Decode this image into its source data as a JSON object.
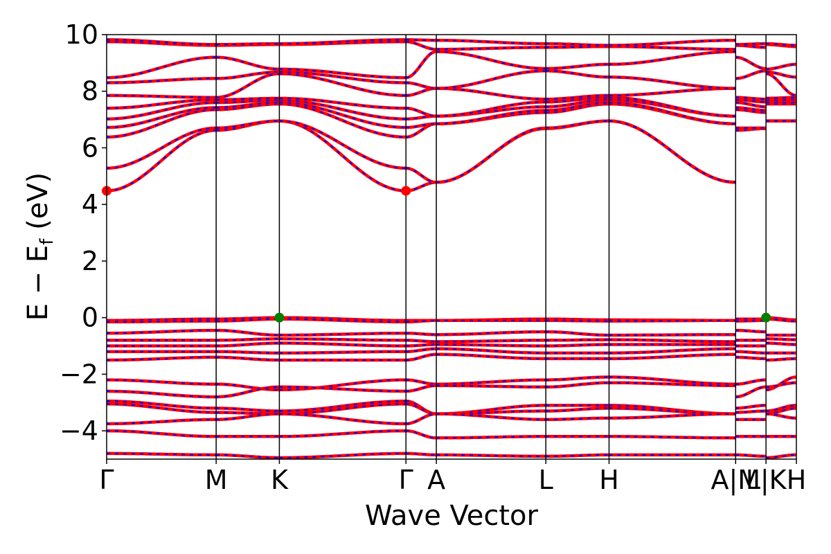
{
  "chart_data": {
    "type": "line",
    "title": "",
    "xlabel": "Wave Vector",
    "ylabel": "E − E",
    "ylabel_sub": "f",
    "ylabel_unit": " (eV)",
    "ylim": [
      -5,
      10
    ],
    "y_ticks": [
      {
        "value": -4,
        "label": "−4"
      },
      {
        "value": -2,
        "label": "−2"
      },
      {
        "value": 0,
        "label": "0"
      },
      {
        "value": 2,
        "label": "2"
      },
      {
        "value": 4,
        "label": "4"
      },
      {
        "value": 6,
        "label": "6"
      },
      {
        "value": 8,
        "label": "8"
      },
      {
        "value": 10,
        "label": "10"
      }
    ],
    "x_ticks": [
      {
        "k": 0.0,
        "label": "Γ"
      },
      {
        "k": 0.577,
        "label": "M"
      },
      {
        "k": 0.91,
        "label": "K"
      },
      {
        "k": 1.577,
        "label": "Γ"
      },
      {
        "k": 1.737,
        "label": "A"
      },
      {
        "k": 2.314,
        "label": "L"
      },
      {
        "k": 2.647,
        "label": "H"
      },
      {
        "k": 3.314,
        "label": "A|M"
      },
      {
        "k": 3.474,
        "label": "L|K"
      },
      {
        "k": 3.634,
        "label": "H"
      }
    ],
    "xlim": [
      0,
      3.634
    ],
    "series_colors": {
      "spin_up": "#ff0000",
      "spin_down": "#0000ff",
      "cbm_marker": "#ff0000",
      "vbm_marker": "#008000"
    },
    "cbm_points": [
      {
        "k": 0.0,
        "e": 4.48
      },
      {
        "k": 1.577,
        "e": 4.48
      }
    ],
    "vbm_points": [
      {
        "k": 0.91,
        "e": 0.0
      },
      {
        "k": 3.474,
        "e": 0.0
      }
    ],
    "conduction_band_values_at_nodes": {
      "nodes": [
        "Γ",
        "M",
        "K",
        "Γ",
        "A",
        "L",
        "H",
        "A",
        "M",
        "L",
        "K",
        "H"
      ],
      "bands": [
        [
          4.48,
          6.62,
          6.95,
          4.48,
          4.78,
          6.68,
          6.95,
          4.78,
          6.62,
          6.68,
          6.95,
          6.95
        ],
        [
          5.28,
          6.7,
          6.95,
          5.28,
          4.78,
          6.7,
          6.95,
          4.78,
          6.7,
          6.7,
          6.95,
          6.95
        ],
        [
          6.38,
          7.35,
          7.55,
          6.38,
          6.85,
          7.25,
          7.55,
          6.85,
          7.35,
          7.25,
          7.55,
          7.55
        ],
        [
          6.72,
          7.42,
          7.6,
          6.72,
          6.85,
          7.32,
          7.6,
          6.85,
          7.42,
          7.32,
          7.6,
          7.6
        ],
        [
          7.02,
          7.6,
          7.68,
          7.02,
          7.12,
          7.45,
          7.7,
          7.12,
          7.6,
          7.45,
          7.68,
          7.7
        ],
        [
          7.4,
          7.7,
          7.75,
          7.4,
          7.12,
          7.62,
          7.78,
          7.12,
          7.7,
          7.62,
          7.75,
          7.78
        ],
        [
          7.85,
          7.78,
          8.62,
          7.85,
          8.1,
          7.72,
          7.85,
          8.1,
          7.78,
          7.72,
          8.62,
          7.85
        ],
        [
          8.3,
          8.45,
          8.68,
          8.3,
          8.1,
          8.72,
          8.5,
          8.1,
          8.45,
          8.72,
          8.68,
          8.5
        ],
        [
          8.48,
          9.2,
          8.78,
          8.48,
          9.4,
          8.8,
          8.95,
          9.4,
          9.2,
          8.8,
          8.78,
          8.95
        ],
        [
          9.75,
          9.62,
          9.65,
          9.75,
          9.48,
          9.55,
          9.58,
          9.48,
          9.62,
          9.55,
          9.65,
          9.58
        ],
        [
          9.82,
          9.65,
          9.68,
          9.82,
          9.8,
          9.68,
          9.62,
          9.8,
          9.65,
          9.68,
          9.68,
          9.62
        ]
      ]
    },
    "valence_band_values_at_nodes": {
      "bands": [
        [
          -0.1,
          -0.05,
          0.0,
          -0.1,
          -0.1,
          -0.05,
          -0.08,
          -0.1,
          -0.05,
          -0.05,
          0.0,
          -0.08
        ],
        [
          -0.15,
          -0.12,
          -0.05,
          -0.15,
          -0.1,
          -0.1,
          -0.12,
          -0.1,
          -0.12,
          -0.1,
          -0.05,
          -0.12
        ],
        [
          -0.55,
          -0.45,
          -0.62,
          -0.55,
          -0.6,
          -0.5,
          -0.62,
          -0.6,
          -0.45,
          -0.5,
          -0.62,
          -0.62
        ],
        [
          -0.8,
          -0.8,
          -0.75,
          -0.8,
          -0.85,
          -0.8,
          -0.78,
          -0.85,
          -0.8,
          -0.8,
          -0.75,
          -0.78
        ],
        [
          -1.0,
          -1.0,
          -0.9,
          -1.0,
          -0.95,
          -1.0,
          -0.95,
          -0.95,
          -1.0,
          -1.0,
          -0.9,
          -0.95
        ],
        [
          -1.2,
          -1.2,
          -1.25,
          -1.2,
          -1.1,
          -1.25,
          -1.25,
          -1.1,
          -1.2,
          -1.25,
          -1.25,
          -1.25
        ],
        [
          -1.5,
          -1.4,
          -1.5,
          -1.5,
          -1.3,
          -1.45,
          -1.45,
          -1.3,
          -1.4,
          -1.45,
          -1.5,
          -1.45
        ],
        [
          -2.2,
          -2.35,
          -2.55,
          -2.2,
          -2.35,
          -2.2,
          -2.1,
          -2.35,
          -2.35,
          -2.2,
          -2.55,
          -2.1
        ],
        [
          -2.6,
          -2.8,
          -2.45,
          -2.6,
          -2.4,
          -2.45,
          -2.3,
          -2.4,
          -2.8,
          -2.45,
          -2.45,
          -2.3
        ],
        [
          -2.95,
          -3.2,
          -3.3,
          -2.95,
          -3.4,
          -3.1,
          -3.1,
          -3.4,
          -3.2,
          -3.1,
          -3.3,
          -3.1
        ],
        [
          -3.05,
          -3.35,
          -3.4,
          -3.05,
          -3.4,
          -3.3,
          -3.2,
          -3.4,
          -3.35,
          -3.3,
          -3.4,
          -3.2
        ],
        [
          -3.75,
          -3.6,
          -3.4,
          -3.75,
          -3.4,
          -3.6,
          -3.55,
          -3.4,
          -3.6,
          -3.6,
          -3.4,
          -3.55
        ],
        [
          -4.0,
          -4.2,
          -4.2,
          -4.0,
          -4.25,
          -4.2,
          -4.2,
          -4.25,
          -4.2,
          -4.2,
          -4.2,
          -4.2
        ],
        [
          -4.8,
          -4.85,
          -4.95,
          -4.8,
          -4.85,
          -4.9,
          -4.85,
          -4.85,
          -4.85,
          -4.9,
          -4.95,
          -4.85
        ]
      ]
    }
  }
}
